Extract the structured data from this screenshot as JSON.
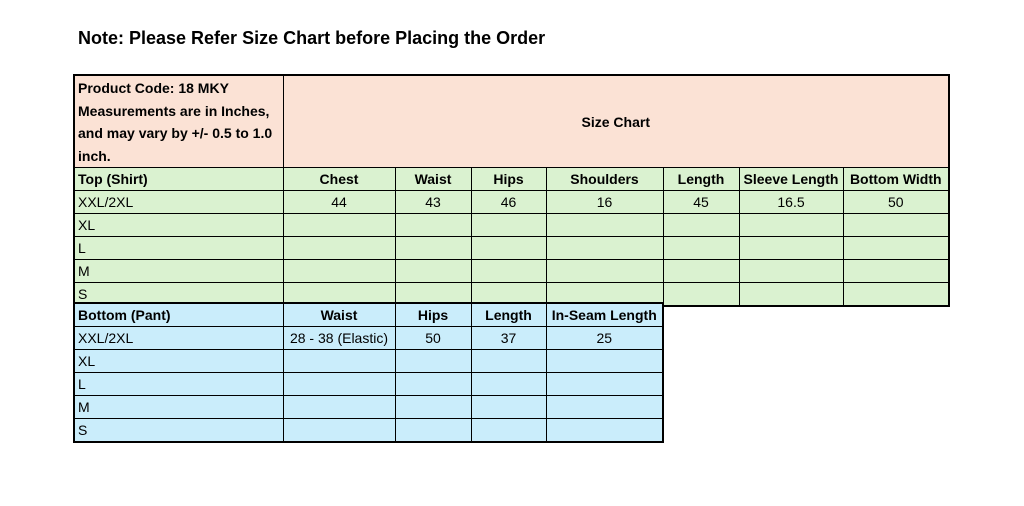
{
  "note": "Note: Please Refer Size Chart before Placing the Order",
  "info": {
    "product_code": "Product Code: 18 MKY",
    "measurements": "Measurements are in Inches, and may vary by +/- 0.5 to 1.0 inch."
  },
  "chart_title": "Size Chart",
  "colors": {
    "header": "#fbe2d5",
    "top": "#daf2d0",
    "bottom": "#caedfb"
  },
  "top": {
    "label": "Top (Shirt)",
    "columns": [
      "Chest",
      "Waist",
      "Hips",
      "Shoulders",
      "Length",
      "Sleeve Length",
      "Bottom Width"
    ],
    "rows": [
      {
        "size": "XXL/2XL",
        "values": [
          "44",
          "43",
          "46",
          "16",
          "45",
          "16.5",
          "50"
        ]
      },
      {
        "size": "XL",
        "values": [
          "",
          "",
          "",
          "",
          "",
          "",
          ""
        ]
      },
      {
        "size": "L",
        "values": [
          "",
          "",
          "",
          "",
          "",
          "",
          ""
        ]
      },
      {
        "size": "M",
        "values": [
          "",
          "",
          "",
          "",
          "",
          "",
          ""
        ]
      },
      {
        "size": "S",
        "values": [
          "",
          "",
          "",
          "",
          "",
          "",
          ""
        ]
      }
    ]
  },
  "bottom": {
    "label": "Bottom (Pant)",
    "columns": [
      "Waist",
      "Hips",
      "Length",
      "In-Seam Length"
    ],
    "rows": [
      {
        "size": "XXL/2XL",
        "values": [
          "28 - 38 (Elastic)",
          "50",
          "37",
          "25"
        ]
      },
      {
        "size": "XL",
        "values": [
          "",
          "",
          "",
          ""
        ]
      },
      {
        "size": "L",
        "values": [
          "",
          "",
          "",
          ""
        ]
      },
      {
        "size": "M",
        "values": [
          "",
          "",
          "",
          ""
        ]
      },
      {
        "size": "S",
        "values": [
          "",
          "",
          "",
          ""
        ]
      }
    ]
  }
}
